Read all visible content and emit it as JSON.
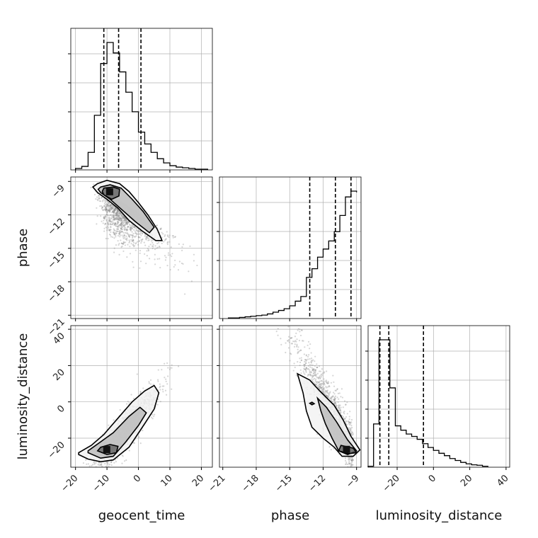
{
  "chart_data": {
    "type": "corner",
    "parameters": [
      "geocent_time",
      "phase",
      "luminosity_distance"
    ],
    "ranges": {
      "geocent_time": [
        -21.5,
        23.5
      ],
      "phase": [
        -21.3,
        -8.6
      ],
      "luminosity_distance": [
        -36,
        42
      ]
    },
    "ticks": {
      "geocent_time": [
        -20,
        -10,
        0,
        10,
        20
      ],
      "phase": [
        -21,
        -18,
        -15,
        -12,
        -9
      ],
      "luminosity_distance": [
        -20,
        0,
        20,
        40
      ]
    },
    "tick_labels": {
      "geocent_time": [
        "−20",
        "−10",
        "0",
        "10",
        "20"
      ],
      "phase": [
        "−21",
        "−18",
        "−15",
        "−12",
        "−9"
      ],
      "luminosity_distance": [
        "−20",
        "0",
        "20",
        "40"
      ]
    },
    "quantiles": {
      "geocent_time": [
        -11.0,
        -6.3,
        0.8
      ],
      "phase": [
        -13.2,
        -10.9,
        -9.5
      ],
      "luminosity_distance": [
        -29.5,
        -24.6,
        -5.5
      ]
    },
    "histograms": {
      "geocent_time": {
        "bin_edges": [
          -20,
          -18,
          -16,
          -14,
          -12,
          -10,
          -8,
          -6,
          -4,
          -2,
          0,
          2,
          4,
          6,
          8,
          10,
          12,
          14,
          16,
          18,
          20,
          22
        ],
        "counts": [
          2,
          5,
          25,
          78,
          152,
          182,
          167,
          140,
          111,
          83,
          54,
          37,
          25,
          16,
          10,
          6,
          4,
          3,
          2,
          1,
          1
        ]
      },
      "phase": {
        "bin_edges": [
          -20.5,
          -20,
          -19.5,
          -19,
          -18.5,
          -18,
          -17.5,
          -17,
          -16.5,
          -16,
          -15.5,
          -15,
          -14.5,
          -14,
          -13.5,
          -13,
          -12.5,
          -12,
          -11.5,
          -11,
          -10.5,
          -10,
          -9.5,
          -9
        ],
        "counts": [
          1,
          1,
          2,
          3,
          4,
          5,
          6,
          8,
          11,
          14,
          17,
          22,
          30,
          38,
          71,
          86,
          106,
          120,
          134,
          150,
          178,
          210,
          220,
          218
        ]
      },
      "luminosity_distance": {
        "bin_edges": [
          -36,
          -33,
          -30,
          -27,
          -24,
          -21,
          -18,
          -15,
          -12,
          -9,
          -6,
          -3,
          0,
          3,
          6,
          9,
          12,
          15,
          18,
          21,
          24,
          27,
          30
        ],
        "counts": [
          2,
          90,
          265,
          265,
          165,
          86,
          77,
          69,
          64,
          58,
          49,
          41,
          35,
          29,
          24,
          18,
          14,
          10,
          7,
          5,
          4,
          2,
          1
        ]
      }
    },
    "contours": {
      "phase_vs_geocent_time": [
        [
          [
            -13,
            -9.2
          ],
          [
            -10,
            -8.9
          ],
          [
            -6,
            -9.2
          ],
          [
            -3,
            -9.9
          ],
          [
            0,
            -10.9
          ],
          [
            3,
            -12
          ],
          [
            6,
            -13.3
          ],
          [
            7.5,
            -14.3
          ],
          [
            5.5,
            -14.3
          ],
          [
            1,
            -13.4
          ],
          [
            -3,
            -12.5
          ],
          [
            -6.5,
            -11.4
          ],
          [
            -10,
            -10.6
          ],
          [
            -13,
            -10
          ],
          [
            -14.5,
            -9.5
          ],
          [
            -13,
            -9.2
          ]
        ],
        [
          [
            -12,
            -9.5
          ],
          [
            -9,
            -9.3
          ],
          [
            -5.5,
            -9.6
          ],
          [
            -2,
            -10.6
          ],
          [
            1.5,
            -11.7
          ],
          [
            5,
            -13.1
          ],
          [
            3.5,
            -13.6
          ],
          [
            -1,
            -12.6
          ],
          [
            -5,
            -11.6
          ],
          [
            -9,
            -10.6
          ],
          [
            -12,
            -10
          ],
          [
            -12.8,
            -9.7
          ],
          [
            -12,
            -9.5
          ]
        ],
        [
          [
            -11,
            -9.6
          ],
          [
            -8,
            -9.5
          ],
          [
            -6,
            -9.7
          ],
          [
            -6.2,
            -10.3
          ],
          [
            -8.5,
            -10.6
          ],
          [
            -11,
            -10.2
          ],
          [
            -11.5,
            -9.9
          ],
          [
            -11,
            -9.6
          ]
        ]
      ],
      "luminosity_distance_vs_geocent_time": [
        [
          [
            -19,
            -29
          ],
          [
            -16,
            -31.5
          ],
          [
            -12,
            -33
          ],
          [
            -8,
            -32
          ],
          [
            -3,
            -25
          ],
          [
            2,
            -12
          ],
          [
            5,
            -4
          ],
          [
            6.5,
            5
          ],
          [
            5,
            9
          ],
          [
            2,
            6
          ],
          [
            -2,
            0
          ],
          [
            -7,
            -10
          ],
          [
            -11,
            -18
          ],
          [
            -15,
            -24
          ],
          [
            -19,
            -28
          ],
          [
            -19,
            -29
          ]
        ],
        [
          [
            -16,
            -28
          ],
          [
            -12,
            -31
          ],
          [
            -8,
            -30
          ],
          [
            -4,
            -22
          ],
          [
            0,
            -13
          ],
          [
            2.5,
            -6
          ],
          [
            0.5,
            -3
          ],
          [
            -3,
            -8
          ],
          [
            -8,
            -17
          ],
          [
            -12,
            -22
          ],
          [
            -16,
            -27
          ],
          [
            -16,
            -28
          ]
        ],
        [
          [
            -13,
            -27
          ],
          [
            -10,
            -29
          ],
          [
            -7,
            -28
          ],
          [
            -6.5,
            -24.5
          ],
          [
            -9,
            -23.5
          ],
          [
            -12,
            -25
          ],
          [
            -13,
            -27
          ]
        ]
      ],
      "luminosity_distance_vs_phase": [
        [
          [
            -14.3,
            15.5
          ],
          [
            -13.2,
            12
          ],
          [
            -12.3,
            6
          ],
          [
            -11,
            -2
          ],
          [
            -10.2,
            -10
          ],
          [
            -9.5,
            -19
          ],
          [
            -8.7,
            -26.5
          ],
          [
            -9.3,
            -30
          ],
          [
            -10.3,
            -30
          ],
          [
            -11,
            -25
          ],
          [
            -12,
            -20
          ],
          [
            -13,
            -14
          ],
          [
            -13.5,
            -5
          ],
          [
            -13.8,
            5
          ],
          [
            -14.3,
            15.5
          ]
        ],
        [
          [
            -12.5,
            2
          ],
          [
            -11.7,
            -3
          ],
          [
            -10.8,
            -11
          ],
          [
            -9.8,
            -21
          ],
          [
            -9,
            -27
          ],
          [
            -9.8,
            -29
          ],
          [
            -10.6,
            -27
          ],
          [
            -11.2,
            -20
          ],
          [
            -11.8,
            -12
          ],
          [
            -12.2,
            -5
          ],
          [
            -12.5,
            2
          ]
        ],
        [
          [
            -10.4,
            -24
          ],
          [
            -9.3,
            -25.5
          ],
          [
            -9,
            -28
          ],
          [
            -9.7,
            -28.5
          ],
          [
            -10.6,
            -27
          ],
          [
            -10.4,
            -24
          ]
        ],
        [
          [
            -13.0,
            -0.2
          ],
          [
            -12.8,
            -1
          ],
          [
            -13.0,
            -1.6
          ],
          [
            -13.2,
            -0.8
          ],
          [
            -13.0,
            -0.2
          ]
        ]
      ]
    },
    "grid": true
  }
}
